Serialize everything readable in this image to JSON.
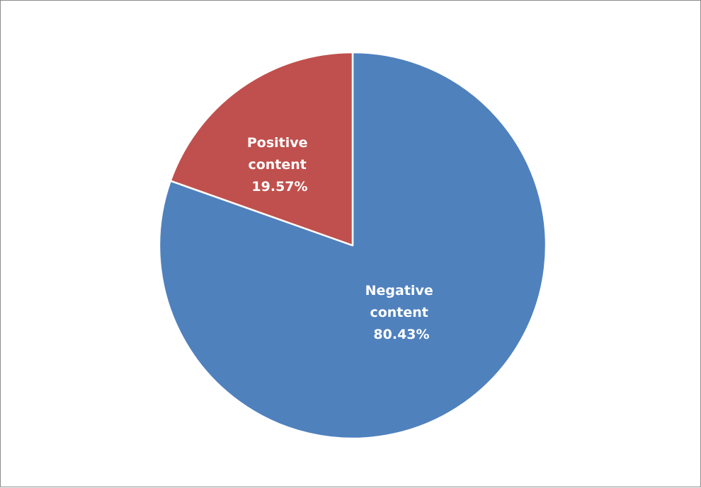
{
  "chart_data": {
    "type": "pie",
    "slices": [
      {
        "label_line1": "Negative",
        "label_line2": "content",
        "label_pct": "80.43%",
        "value": 80.43,
        "color": "#4f81bd"
      },
      {
        "label_line1": "Positive",
        "label_line2": "content",
        "label_pct": "19.57%",
        "value": 19.57,
        "color": "#c0504d"
      }
    ],
    "start_angle": "12 o'clock",
    "direction": "clockwise",
    "legend": "none"
  }
}
